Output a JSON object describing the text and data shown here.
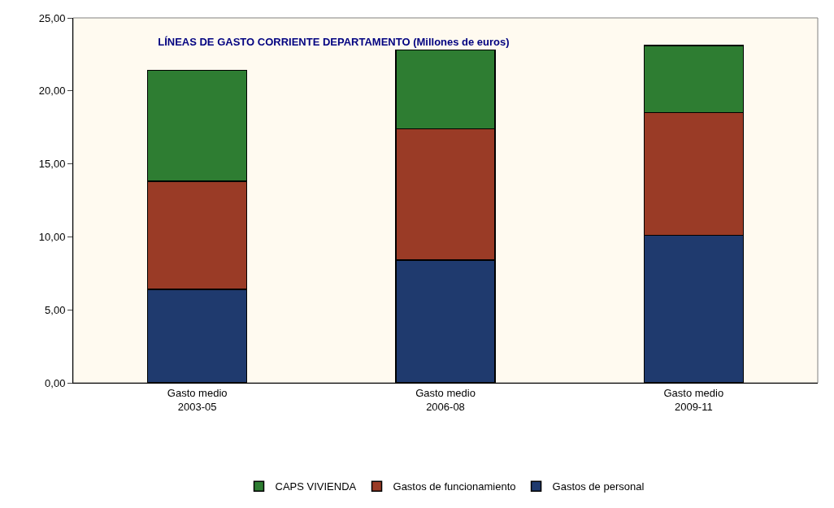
{
  "chart_data": {
    "type": "bar",
    "stacked": true,
    "title": "LÍNEAS DE GASTO CORRIENTE DEPARTAMENTO (Millones de euros)",
    "categories": [
      "Gasto medio\n2003-05",
      "Gasto medio\n2006-08",
      "Gasto medio\n2009-11"
    ],
    "series": [
      {
        "name": "Gastos de personal",
        "color": "#1f3a6e",
        "values": [
          6.4,
          8.4,
          10.1
        ]
      },
      {
        "name": "Gastos de funcionamiento",
        "color": "#9a3b26",
        "values": [
          7.4,
          9.0,
          8.4
        ]
      },
      {
        "name": "CAPS VIVIENDA",
        "color": "#2e7d32",
        "values": [
          7.6,
          5.4,
          4.6
        ]
      }
    ],
    "ylim": [
      0,
      25
    ],
    "yticks": [
      {
        "value": 0,
        "label": "0,00"
      },
      {
        "value": 5,
        "label": "5,00"
      },
      {
        "value": 10,
        "label": "10,00"
      },
      {
        "value": 15,
        "label": "15,00"
      },
      {
        "value": 20,
        "label": "20,00"
      },
      {
        "value": 25,
        "label": "25,00"
      }
    ],
    "grid": false,
    "legend": "bottom"
  }
}
